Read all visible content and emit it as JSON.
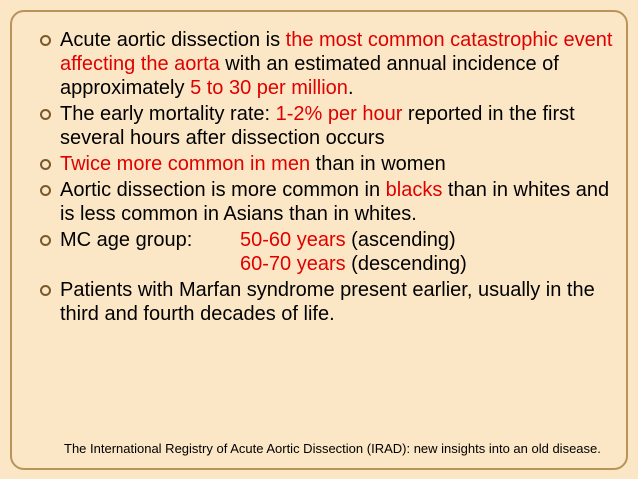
{
  "bullets": [
    {
      "segments": [
        {
          "text": "Acute aortic dissection is ",
          "hl": false
        },
        {
          "text": "the most common catastrophic event affecting the aorta",
          "hl": true
        },
        {
          "text": " with an estimated annual incidence of approximately ",
          "hl": false
        },
        {
          "text": "5 to 30 per million",
          "hl": true
        },
        {
          "text": ".",
          "hl": false
        }
      ]
    },
    {
      "segments": [
        {
          "text": "The early mortality rate: ",
          "hl": false
        },
        {
          "text": "1-2% per hour",
          "hl": true
        },
        {
          "text": " reported in the first several hours after dissection occurs",
          "hl": false
        }
      ]
    },
    {
      "segments": [
        {
          "text": "Twice more common in men",
          "hl": true
        },
        {
          "text": " than in women",
          "hl": false
        }
      ]
    },
    {
      "segments": [
        {
          "text": "Aortic dissection is more common in ",
          "hl": false
        },
        {
          "text": "blacks",
          "hl": true
        },
        {
          "text": " than in whites and is less common in Asians than in whites.",
          "hl": false
        }
      ]
    }
  ],
  "age": {
    "label": "MC age group:",
    "asc_years": "50-60 years",
    "asc_note": " (ascending)",
    "desc_years": "60-70 years",
    "desc_note": " (descending)"
  },
  "last_bullet": "Patients with Marfan syndrome present earlier, usually in the third and fourth decades of life.",
  "reference": "The International Registry of Acute Aortic Dissection (IRAD): new insights into an old disease.",
  "colors": {
    "background": "#fbe7c6",
    "highlight": "#e00000",
    "frame": "#b8935a"
  }
}
